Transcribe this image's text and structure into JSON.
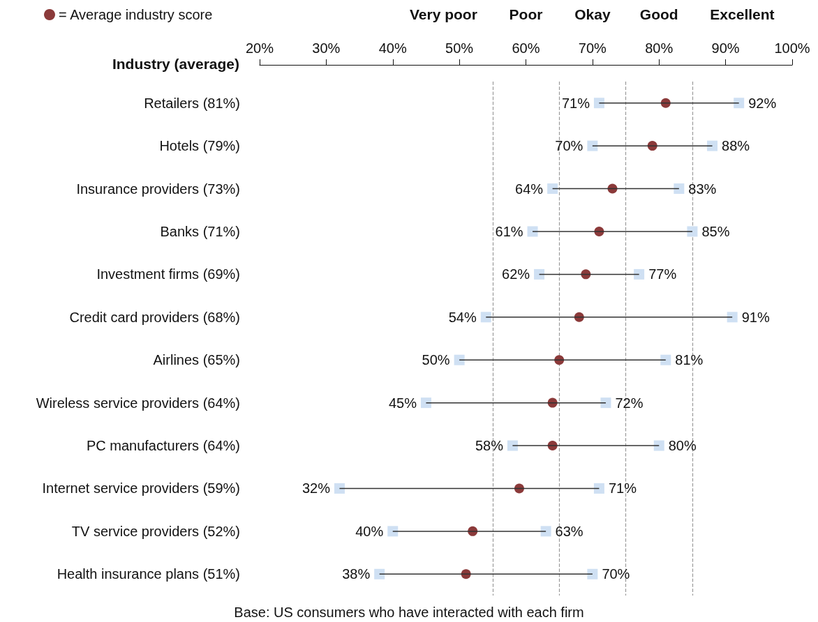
{
  "chart_data": {
    "type": "scatter",
    "orientation": "horizontal",
    "ylabel": "Industry (average)",
    "categories": [
      "Retailers (81%)",
      "Hotels (79%)",
      "Insurance providers (73%)",
      "Banks (71%)",
      "Investment firms (69%)",
      "Credit card providers (68%)",
      "Airlines (65%)",
      "Wireless service providers (64%)",
      "PC manufacturers (64%)",
      "Internet service providers (59%)",
      "TV service providers (52%)",
      "Health insurance plans (51%)"
    ],
    "xlim": [
      20,
      100
    ],
    "xticks": [
      {
        "value": 20,
        "label": "20%"
      },
      {
        "value": 30,
        "label": "30%"
      },
      {
        "value": 40,
        "label": "40%"
      },
      {
        "value": 50,
        "label": "50%"
      },
      {
        "value": 60,
        "label": "60%"
      },
      {
        "value": 70,
        "label": "70%"
      },
      {
        "value": 80,
        "label": "80%"
      },
      {
        "value": 90,
        "label": "90%"
      },
      {
        "value": 100,
        "label": "100%"
      }
    ],
    "series": [
      {
        "type": "bar",
        "color": "#333333",
        "base": [
          71,
          70,
          64,
          61,
          62,
          54,
          50,
          45,
          58,
          32,
          40,
          38
        ],
        "values": [
          21,
          18,
          19,
          24,
          15,
          37,
          31,
          27,
          22,
          39,
          23,
          32
        ]
      },
      {
        "marker": "square",
        "color": "#cfe0f3",
        "values": [
          71,
          70,
          64,
          61,
          62,
          54,
          50,
          45,
          58,
          32,
          40,
          38
        ],
        "value_labels": [
          "71%",
          "70%",
          "64%",
          "61%",
          "62%",
          "54%",
          "50%",
          "45%",
          "58%",
          "32%",
          "40%",
          "38%"
        ]
      },
      {
        "marker": "square",
        "color": "#cfe0f3",
        "values": [
          92,
          88,
          83,
          85,
          77,
          91,
          81,
          72,
          80,
          71,
          63,
          70
        ],
        "value_labels": [
          "92%",
          "88%",
          "83%",
          "85%",
          "77%",
          "91%",
          "81%",
          "72%",
          "80%",
          "71%",
          "63%",
          "70%"
        ]
      },
      {
        "marker": "circle",
        "color": "#8b3a3a",
        "name": "= Average industry score",
        "values": [
          81,
          79,
          73,
          71,
          69,
          68,
          65,
          64,
          64,
          59,
          52,
          51
        ]
      }
    ],
    "ref_lines": [
      {
        "axis": "x",
        "value": 55,
        "label": null,
        "line_style": "dashed",
        "color": "#999999"
      },
      {
        "axis": "x",
        "value": 65,
        "label": null,
        "line_style": "dashed",
        "color": "#999999"
      },
      {
        "axis": "x",
        "value": 75,
        "label": null,
        "line_style": "dashed",
        "color": "#999999"
      },
      {
        "axis": "x",
        "value": 85,
        "label": null,
        "line_style": "dashed",
        "color": "#999999"
      }
    ],
    "legend": "top left",
    "grid": false,
    "annotations": [
      "Very poor",
      "Poor",
      "Okay",
      "Good",
      "Excellent",
      "Base: US consumers who have interacted with each firm"
    ]
  }
}
